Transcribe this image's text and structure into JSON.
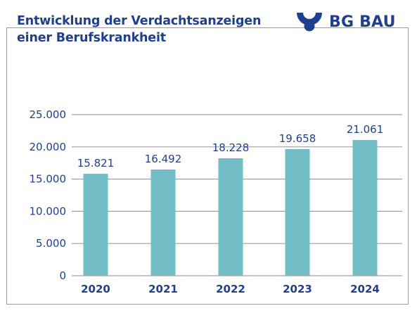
{
  "brand": {
    "name": "BG BAU",
    "logo_icon": "bg-bau-logo-icon",
    "color": "#1f3f8f"
  },
  "chart_data": {
    "type": "bar",
    "title_lines": [
      "Entwicklung der Verdachtsanzeigen",
      "einer Berufskrankheit"
    ],
    "categories": [
      "2020",
      "2021",
      "2022",
      "2023",
      "2024"
    ],
    "values": [
      15821,
      16492,
      18228,
      19658,
      21061
    ],
    "value_labels": [
      "15.821",
      "16.492",
      "18.228",
      "19.658",
      "21.061"
    ],
    "ylim": [
      0,
      25000
    ],
    "yticks": [
      0,
      5000,
      10000,
      15000,
      20000,
      25000
    ],
    "ytick_labels": [
      "0",
      "5.000",
      "10.000",
      "15.000",
      "20.000",
      "25.000"
    ],
    "grid": true,
    "bar_color": "#72bdc6",
    "grid_color": "#a0a0a0",
    "text_color": "#1f3f8f"
  }
}
